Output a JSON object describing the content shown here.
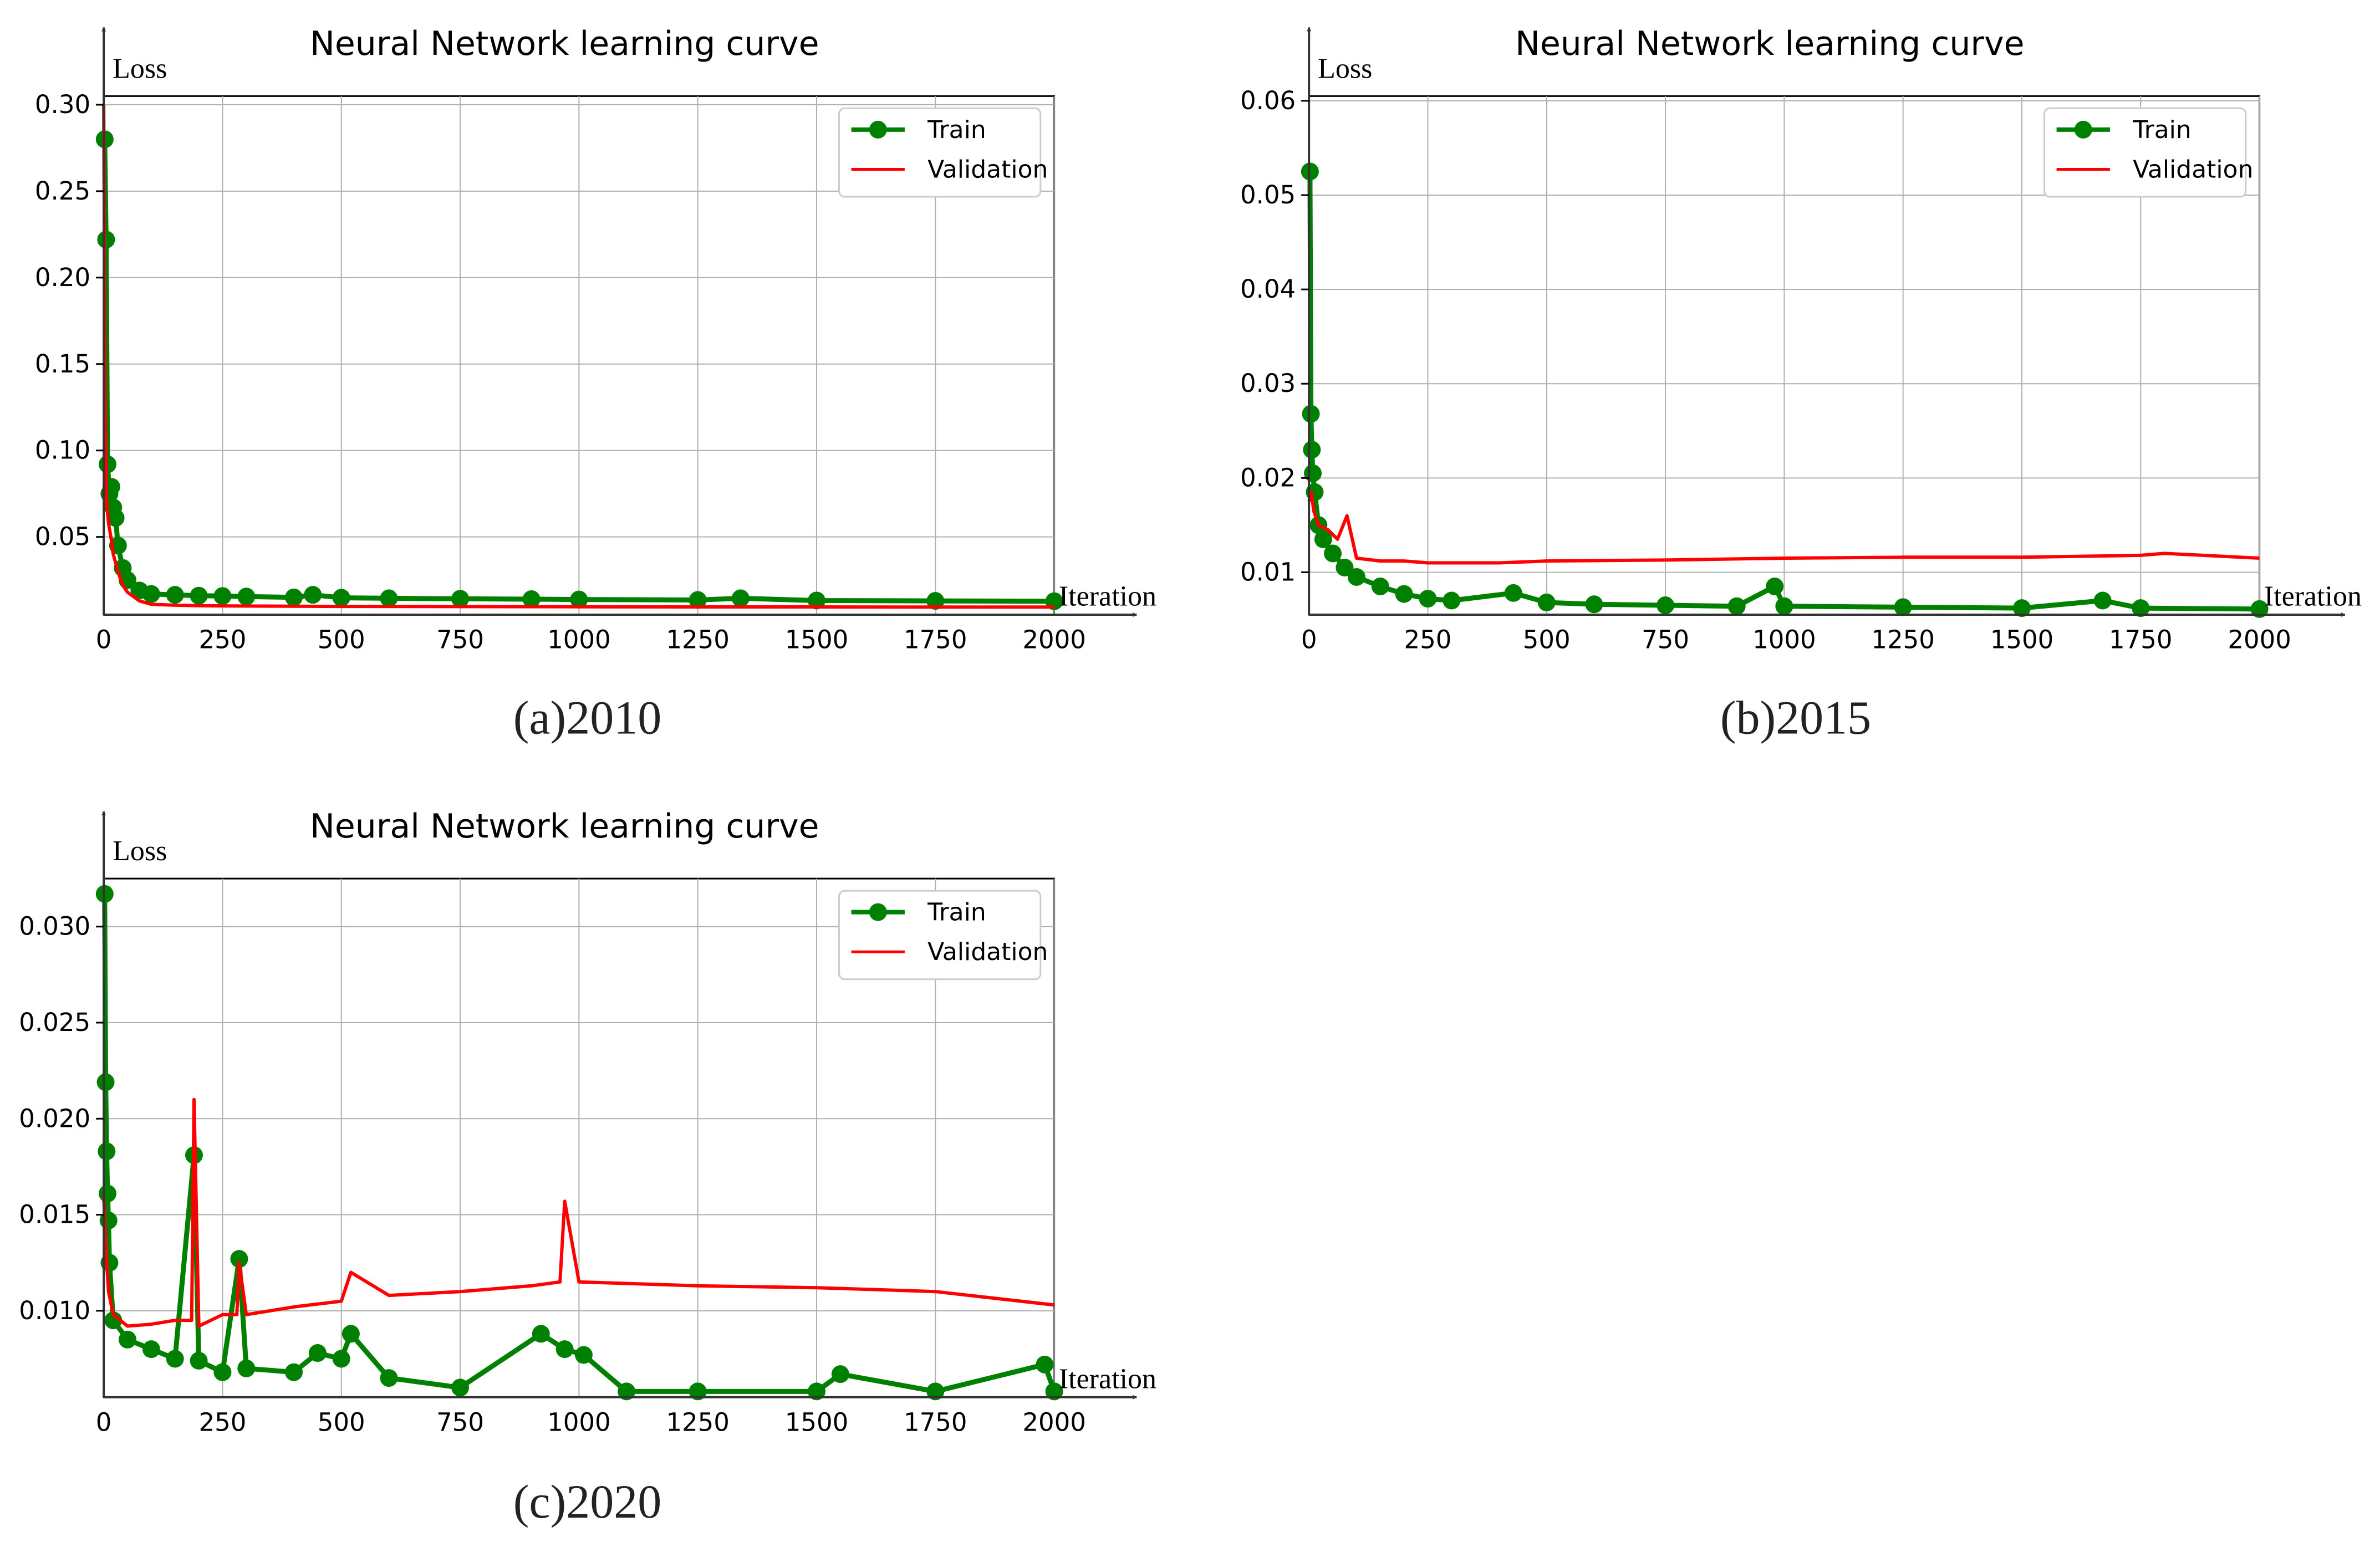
{
  "figure": {
    "panels": [
      {
        "caption": "(a)2010",
        "chart_data": {
          "type": "line",
          "title": "Neural Network learning curve",
          "xlabel": "Iteration",
          "ylabel": "Loss",
          "xlim": [
            0,
            2000
          ],
          "ylim": [
            0.005,
            0.305
          ],
          "xticks": [
            0,
            250,
            500,
            750,
            1000,
            1250,
            1500,
            1750,
            2000
          ],
          "yticks": [
            0.05,
            0.1,
            0.15,
            0.2,
            0.25,
            0.3
          ],
          "ytick_labels": [
            "0.05",
            "0.10",
            "0.15",
            "0.20",
            "0.25",
            "0.30"
          ],
          "grid": true,
          "legend": "top-right",
          "series": [
            {
              "name": "Train",
              "color": "#008000",
              "marker": "circle",
              "x": [
                2,
                5,
                8,
                12,
                16,
                20,
                25,
                30,
                40,
                50,
                75,
                100,
                150,
                200,
                250,
                300,
                400,
                440,
                500,
                600,
                750,
                900,
                1000,
                1250,
                1340,
                1500,
                1750,
                2000
              ],
              "y": [
                0.28,
                0.222,
                0.092,
                0.075,
                0.079,
                0.067,
                0.061,
                0.045,
                0.032,
                0.025,
                0.019,
                0.017,
                0.0165,
                0.016,
                0.0158,
                0.0155,
                0.015,
                0.0165,
                0.0148,
                0.0145,
                0.0142,
                0.014,
                0.0138,
                0.0135,
                0.0145,
                0.0132,
                0.013,
                0.0128
              ]
            },
            {
              "name": "Validation",
              "color": "#ff0000",
              "x": [
                0,
                3,
                6,
                10,
                15,
                20,
                30,
                40,
                50,
                75,
                100,
                150,
                200,
                300,
                500,
                750,
                1000,
                1250,
                1500,
                1750,
                2000
              ],
              "y": [
                0.3,
                0.13,
                0.07,
                0.058,
                0.05,
                0.04,
                0.03,
                0.022,
                0.018,
                0.013,
                0.011,
                0.0105,
                0.0102,
                0.01,
                0.0098,
                0.0097,
                0.0096,
                0.0095,
                0.0095,
                0.0094,
                0.0094
              ]
            }
          ]
        }
      },
      {
        "caption": "(b)2015",
        "chart_data": {
          "type": "line",
          "title": "Neural Network learning curve",
          "xlabel": "Iteration",
          "ylabel": "Loss",
          "xlim": [
            0,
            2000
          ],
          "ylim": [
            0.0055,
            0.0605
          ],
          "xticks": [
            0,
            250,
            500,
            750,
            1000,
            1250,
            1500,
            1750,
            2000
          ],
          "yticks": [
            0.01,
            0.02,
            0.03,
            0.04,
            0.05,
            0.06
          ],
          "ytick_labels": [
            "0.01",
            "0.02",
            "0.03",
            "0.04",
            "0.05",
            "0.06"
          ],
          "grid": true,
          "legend": "top-right",
          "series": [
            {
              "name": "Train",
              "color": "#008000",
              "marker": "circle",
              "x": [
                2,
                4,
                6,
                8,
                12,
                20,
                30,
                50,
                75,
                100,
                150,
                200,
                250,
                300,
                430,
                500,
                600,
                750,
                900,
                980,
                1000,
                1250,
                1500,
                1670,
                1750,
                2000
              ],
              "y": [
                0.0525,
                0.0268,
                0.023,
                0.0205,
                0.0185,
                0.015,
                0.0135,
                0.012,
                0.0105,
                0.0095,
                0.0085,
                0.0077,
                0.0072,
                0.007,
                0.0078,
                0.0068,
                0.0066,
                0.0065,
                0.0064,
                0.0085,
                0.0064,
                0.0063,
                0.0062,
                0.007,
                0.0062,
                0.0061
              ]
            },
            {
              "name": "Validation",
              "color": "#ff0000",
              "x": [
                0,
                5,
                10,
                20,
                40,
                60,
                80,
                100,
                150,
                200,
                250,
                300,
                400,
                500,
                750,
                1000,
                1250,
                1500,
                1750,
                1800,
                2000
              ],
              "y": [
                0.0175,
                0.0185,
                0.0165,
                0.015,
                0.0145,
                0.0135,
                0.016,
                0.0115,
                0.0112,
                0.0112,
                0.011,
                0.011,
                0.011,
                0.0112,
                0.0113,
                0.0115,
                0.0116,
                0.0116,
                0.0118,
                0.012,
                0.0115
              ]
            }
          ]
        }
      },
      {
        "caption": "(c)2020",
        "chart_data": {
          "type": "line",
          "title": "Neural Network learning curve",
          "xlabel": "Iteration",
          "ylabel": "Loss",
          "xlim": [
            0,
            2000
          ],
          "ylim": [
            0.0055,
            0.0325
          ],
          "xticks": [
            0,
            250,
            500,
            750,
            1000,
            1250,
            1500,
            1750,
            2000
          ],
          "yticks": [
            0.01,
            0.015,
            0.02,
            0.025,
            0.03
          ],
          "ytick_labels": [
            "0.010",
            "0.015",
            "0.020",
            "0.025",
            "0.030"
          ],
          "grid": true,
          "legend": "top-right",
          "series": [
            {
              "name": "Train",
              "color": "#008000",
              "marker": "circle",
              "x": [
                2,
                4,
                6,
                8,
                10,
                12,
                20,
                50,
                100,
                150,
                190,
                200,
                250,
                285,
                300,
                400,
                450,
                500,
                520,
                600,
                750,
                920,
                970,
                1010,
                1100,
                1250,
                1500,
                1550,
                1750,
                1980,
                2000
              ],
              "y": [
                0.0317,
                0.0219,
                0.0183,
                0.0161,
                0.0147,
                0.0125,
                0.0095,
                0.0085,
                0.008,
                0.0075,
                0.0181,
                0.0074,
                0.0068,
                0.0127,
                0.007,
                0.0068,
                0.0078,
                0.0075,
                0.0088,
                0.0065,
                0.006,
                0.0088,
                0.008,
                0.0077,
                0.0058,
                0.0058,
                0.0058,
                0.0067,
                0.0058,
                0.0072,
                0.0058
              ]
            },
            {
              "name": "Validation",
              "color": "#ff0000",
              "x": [
                0,
                5,
                10,
                20,
                50,
                100,
                150,
                185,
                190,
                200,
                250,
                280,
                285,
                300,
                400,
                500,
                520,
                600,
                750,
                900,
                960,
                970,
                1000,
                1250,
                1500,
                1750,
                2000
              ],
              "y": [
                0.016,
                0.013,
                0.011,
                0.0098,
                0.0092,
                0.0093,
                0.0095,
                0.0095,
                0.021,
                0.0092,
                0.0098,
                0.0098,
                0.0125,
                0.0098,
                0.0102,
                0.0105,
                0.012,
                0.0108,
                0.011,
                0.0113,
                0.0115,
                0.0157,
                0.0115,
                0.0113,
                0.0112,
                0.011,
                0.0103
              ]
            }
          ]
        }
      }
    ]
  }
}
